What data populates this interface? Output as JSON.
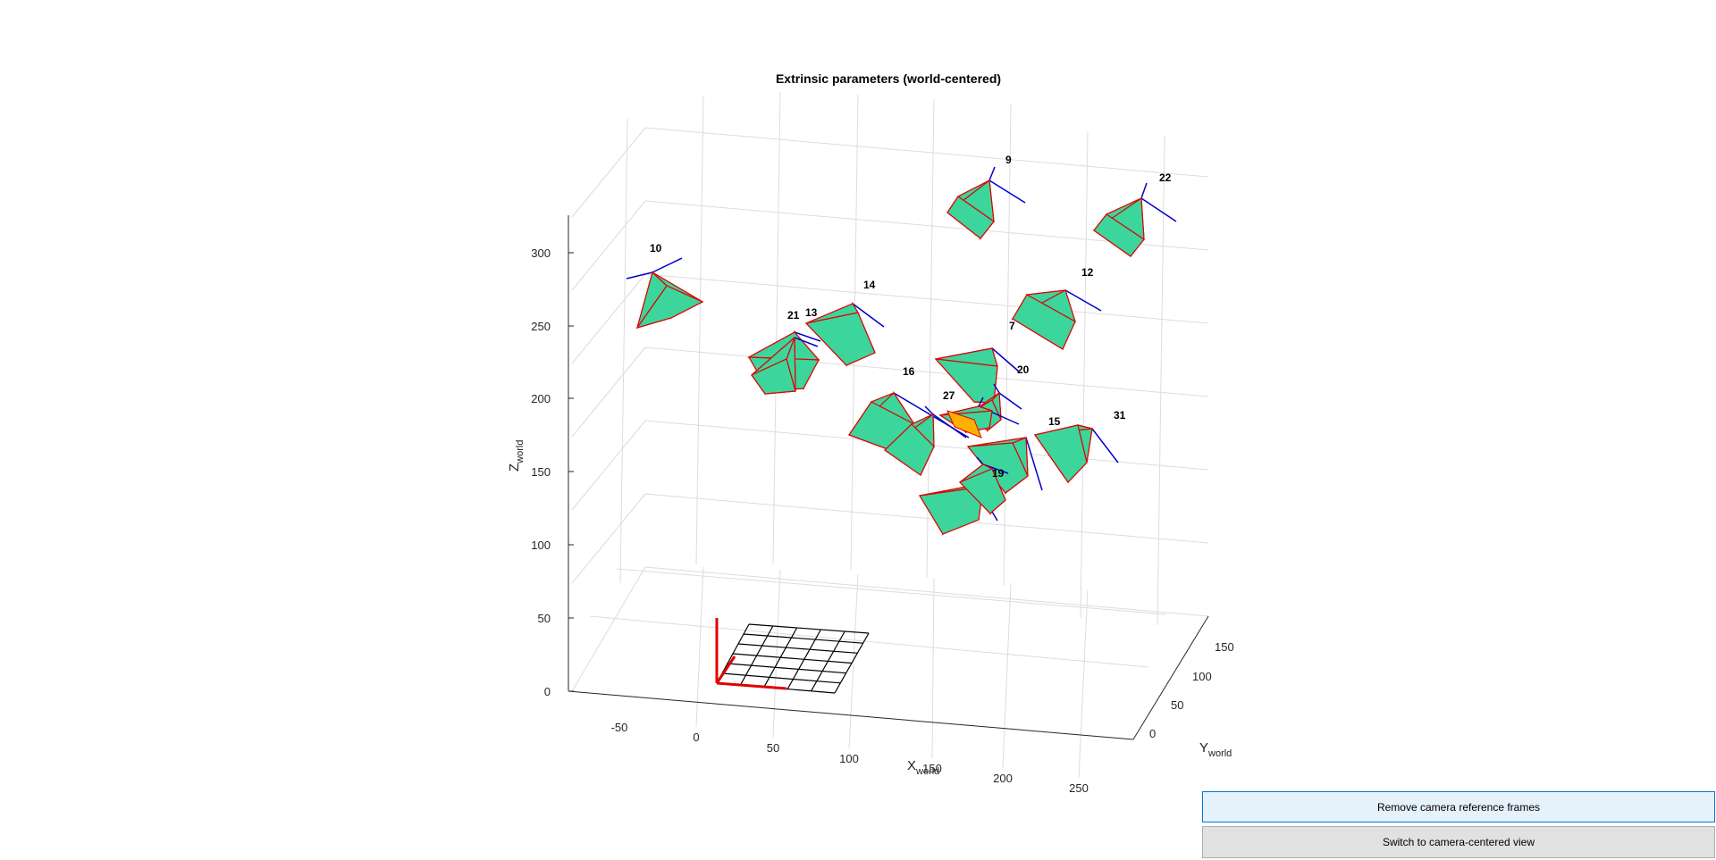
{
  "figure": {
    "title": "Extrinsic parameters (world-centered)",
    "xlabel": "X",
    "xlabel_sub": "world",
    "ylabel": "Y",
    "ylabel_sub": "world",
    "zlabel": "Z",
    "zlabel_sub": "world"
  },
  "chart_data": {
    "type": "scatter",
    "projection": "3d",
    "grid": true,
    "x_ticks": [
      "-50",
      "0",
      "50",
      "100",
      "150",
      "200",
      "250"
    ],
    "y_ticks": [
      "0",
      "50",
      "100",
      "150"
    ],
    "z_ticks": [
      "0",
      "50",
      "100",
      "150",
      "200",
      "250",
      "300"
    ],
    "camera_labels": [
      "9",
      "22",
      "10",
      "12",
      "14",
      "21",
      "13",
      "7",
      "20",
      "16",
      "27",
      "15",
      "31",
      "19"
    ],
    "colors": {
      "camera_face": "#3cd59c",
      "camera_edge": "#e00000",
      "camera_axis": "#0000cc",
      "world_axis": "#e00000",
      "highlight": "#ffb000",
      "grid": "#dcdcdc"
    }
  },
  "buttons": {
    "remove_frames": "Remove camera reference frames",
    "switch_view": "Switch to camera-centered view"
  }
}
